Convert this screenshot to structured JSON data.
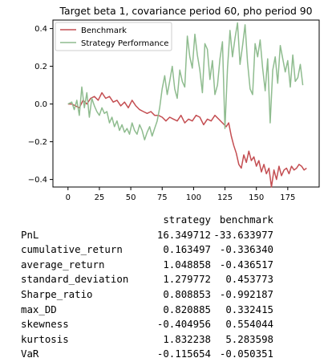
{
  "chart_data": {
    "type": "line",
    "title": "Target beta 1, covariance period 60, pho period 90",
    "xlabel": "",
    "ylabel": "",
    "xlim": [
      -12,
      200
    ],
    "ylim": [
      -0.44,
      0.445
    ],
    "xticks": [
      0,
      25,
      50,
      75,
      100,
      125,
      150,
      175
    ],
    "yticks": [
      -0.4,
      -0.2,
      0.0,
      0.2,
      0.4
    ],
    "xtick_labels": [
      "0",
      "25",
      "50",
      "75",
      "100",
      "125",
      "150",
      "175"
    ],
    "ytick_labels": [
      "−0.4",
      "−0.2",
      "0.0",
      "0.2",
      "0.4"
    ],
    "legend_position": "top-left",
    "series": [
      {
        "name": "Benchmark",
        "color": "#c44e52",
        "x": [
          0,
          3,
          6,
          9,
          12,
          15,
          18,
          21,
          24,
          27,
          30,
          33,
          36,
          39,
          42,
          45,
          48,
          51,
          54,
          57,
          60,
          63,
          66,
          69,
          72,
          75,
          78,
          81,
          84,
          87,
          90,
          93,
          96,
          99,
          102,
          105,
          108,
          111,
          114,
          117,
          120,
          123,
          126,
          128,
          130,
          132,
          134,
          136,
          138,
          140,
          142,
          144,
          146,
          148,
          150,
          152,
          154,
          156,
          158,
          160,
          162,
          164,
          166,
          168,
          170,
          172,
          174,
          176,
          178,
          180,
          182,
          184,
          186,
          188,
          190
        ],
        "values": [
          0.0,
          0.0,
          -0.01,
          -0.02,
          0.02,
          0.0,
          0.03,
          0.04,
          0.02,
          0.06,
          0.03,
          0.04,
          0.01,
          0.02,
          -0.01,
          0.01,
          -0.02,
          0.02,
          -0.01,
          -0.03,
          -0.04,
          -0.05,
          -0.04,
          -0.06,
          -0.06,
          -0.07,
          -0.09,
          -0.07,
          -0.08,
          -0.09,
          -0.06,
          -0.1,
          -0.08,
          -0.09,
          -0.06,
          -0.07,
          -0.11,
          -0.08,
          -0.09,
          -0.06,
          -0.08,
          -0.1,
          -0.12,
          -0.1,
          -0.17,
          -0.22,
          -0.26,
          -0.32,
          -0.34,
          -0.27,
          -0.31,
          -0.25,
          -0.3,
          -0.28,
          -0.33,
          -0.3,
          -0.36,
          -0.32,
          -0.37,
          -0.34,
          -0.44,
          -0.35,
          -0.4,
          -0.33,
          -0.38,
          -0.35,
          -0.34,
          -0.37,
          -0.33,
          -0.35,
          -0.34,
          -0.32,
          -0.33,
          -0.35,
          -0.34
        ]
      },
      {
        "name": "Strategy Performance",
        "color": "#8fbc8f",
        "x": [
          0,
          3,
          5,
          7,
          9,
          11,
          13,
          15,
          17,
          19,
          21,
          23,
          25,
          27,
          29,
          31,
          33,
          35,
          37,
          39,
          41,
          43,
          45,
          47,
          49,
          51,
          53,
          55,
          57,
          59,
          61,
          63,
          65,
          67,
          69,
          71,
          73,
          75,
          77,
          79,
          81,
          83,
          85,
          87,
          89,
          91,
          93,
          95,
          97,
          99,
          101,
          103,
          105,
          107,
          109,
          111,
          113,
          115,
          117,
          119,
          121,
          123,
          125,
          127,
          129,
          131,
          133,
          135,
          137,
          139,
          141,
          143,
          145,
          147,
          149,
          151,
          153,
          155,
          157,
          159,
          161,
          163,
          165,
          167,
          169,
          171,
          173,
          175,
          177,
          179,
          181,
          183,
          185,
          187
        ],
        "values": [
          0.0,
          0.01,
          -0.03,
          0.02,
          -0.06,
          0.09,
          -0.02,
          0.06,
          -0.07,
          0.03,
          -0.01,
          -0.04,
          -0.06,
          -0.02,
          -0.05,
          -0.04,
          -0.1,
          -0.07,
          -0.12,
          -0.09,
          -0.14,
          -0.11,
          -0.15,
          -0.13,
          -0.16,
          -0.1,
          -0.14,
          -0.16,
          -0.11,
          -0.14,
          -0.19,
          -0.15,
          -0.12,
          -0.17,
          -0.13,
          -0.09,
          -0.02,
          0.08,
          0.15,
          0.05,
          0.12,
          0.2,
          0.08,
          0.03,
          0.18,
          0.12,
          0.09,
          0.36,
          0.25,
          0.19,
          0.37,
          0.26,
          0.18,
          0.06,
          0.32,
          0.29,
          0.13,
          0.23,
          0.05,
          0.1,
          0.24,
          0.33,
          -0.13,
          0.19,
          0.39,
          0.25,
          0.35,
          0.43,
          0.21,
          0.31,
          0.42,
          0.22,
          0.08,
          0.05,
          0.32,
          0.25,
          0.34,
          0.19,
          0.07,
          0.24,
          -0.1,
          0.18,
          0.25,
          0.11,
          0.31,
          0.24,
          0.17,
          0.23,
          0.09,
          0.26,
          0.12,
          0.14,
          0.21,
          0.1
        ]
      }
    ]
  },
  "stats": {
    "headers": [
      "strategy",
      "benchmark"
    ],
    "rows": [
      {
        "label": "PnL",
        "strategy": "16.349712",
        "benchmark": "-33.633977"
      },
      {
        "label": "cumulative_return",
        "strategy": "0.163497",
        "benchmark": "-0.336340"
      },
      {
        "label": "average_return",
        "strategy": "1.048858",
        "benchmark": "-0.436517"
      },
      {
        "label": "standard_deviation",
        "strategy": "1.279772",
        "benchmark": "0.453773"
      },
      {
        "label": "Sharpe_ratio",
        "strategy": "0.808853",
        "benchmark": "-0.992187"
      },
      {
        "label": "max_DD",
        "strategy": "0.820885",
        "benchmark": "0.332415"
      },
      {
        "label": "skewness",
        "strategy": "-0.404956",
        "benchmark": "0.554044"
      },
      {
        "label": "kurtosis",
        "strategy": "1.832238",
        "benchmark": "5.283598"
      },
      {
        "label": "VaR",
        "strategy": "-0.115654",
        "benchmark": "-0.050351"
      }
    ]
  }
}
